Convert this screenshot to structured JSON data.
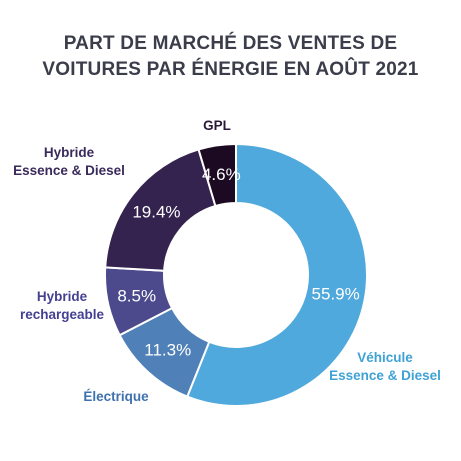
{
  "chart_data": {
    "type": "pie",
    "title": [
      "PART DE MARCHÉ DES VENTES DE",
      "VOITURES PAR ÉNERGIE EN AOÛT 2021"
    ],
    "categories": [
      [
        "Véhicule",
        "Essence & Diesel"
      ],
      [
        "Électrique"
      ],
      [
        "Hybride",
        "rechargeable"
      ],
      [
        "Hybride",
        "Essence & Diesel"
      ],
      [
        "GPL"
      ]
    ],
    "values": [
      55.9,
      11.3,
      8.5,
      19.4,
      4.6
    ],
    "value_labels": [
      "55.9%",
      "11.3%",
      "8.5%",
      "19.4%",
      "4.6%"
    ],
    "colors": [
      "#4fa9dc",
      "#4f80b7",
      "#4c4a8d",
      "#33234e",
      "#1c0a23"
    ],
    "label_colors": [
      "#3fa2d6",
      "#3f71ae",
      "#454092",
      "#3a2a5c",
      "#2a1838"
    ],
    "title_color": "#3b3d4a",
    "donut": true
  }
}
